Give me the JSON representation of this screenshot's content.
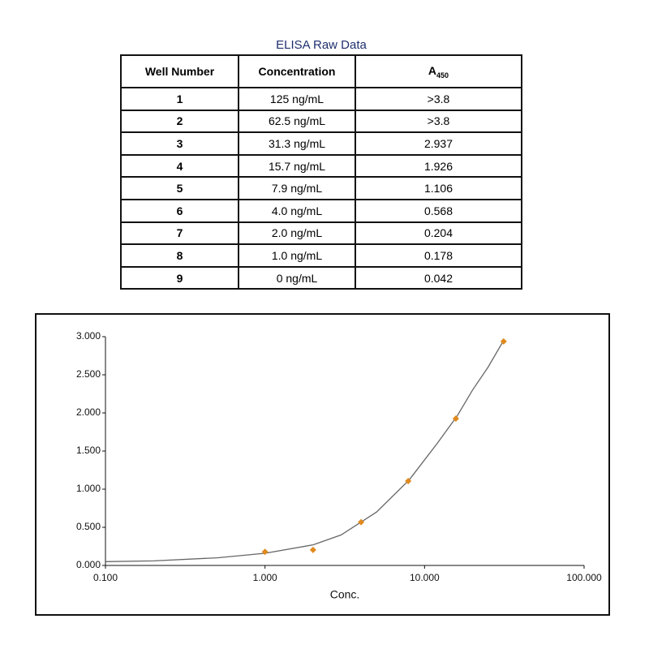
{
  "table": {
    "title": "ELISA Raw Data",
    "header": [
      "Well Number",
      "Concentration",
      {
        "text": "A",
        "subscript": "450"
      }
    ],
    "rows": [
      [
        "1",
        "125 ng/mL",
        ">3.8"
      ],
      [
        "2",
        "62.5 ng/mL",
        ">3.8"
      ],
      [
        "3",
        "31.3 ng/mL",
        "2.937"
      ],
      [
        "4",
        "15.7 ng/mL",
        "1.926"
      ],
      [
        "5",
        "7.9 ng/mL",
        "1.106"
      ],
      [
        "6",
        "4.0 ng/mL",
        "0.568"
      ],
      [
        "7",
        "2.0 ng/mL",
        "0.204"
      ],
      [
        "8",
        "1.0 ng/mL",
        "0.178"
      ],
      [
        "9",
        "0 ng/mL",
        "0.042"
      ]
    ]
  },
  "chart_data": {
    "type": "scatter",
    "x_label": "Conc.",
    "xscale": "log",
    "xlim": [
      0.1,
      100
    ],
    "xticks": [
      {
        "value": 0.1,
        "label": "0.100"
      },
      {
        "value": 1,
        "label": "1.000"
      },
      {
        "value": 10,
        "label": "10.000"
      },
      {
        "value": 100,
        "label": "100.000"
      }
    ],
    "ylim": [
      0,
      3
    ],
    "yticks": [
      {
        "value": 0,
        "label": "0.000"
      },
      {
        "value": 0.5,
        "label": "0.500"
      },
      {
        "value": 1,
        "label": "1.000"
      },
      {
        "value": 1.5,
        "label": "1.500"
      },
      {
        "value": 2,
        "label": "2.000"
      },
      {
        "value": 2.5,
        "label": "2.500"
      },
      {
        "value": 3,
        "label": "3.000"
      }
    ],
    "series": [
      {
        "type": "scatter",
        "color": "#e08a1e",
        "x": [
          1,
          2,
          4,
          7.9,
          15.7,
          31.3
        ],
        "values": [
          0.178,
          0.204,
          0.568,
          1.106,
          1.926,
          2.937
        ]
      },
      {
        "type": "line",
        "color": "#666666",
        "x": [
          0.1,
          0.2,
          0.5,
          1,
          2,
          3,
          5,
          8,
          12,
          16,
          20,
          25,
          31.3
        ],
        "values": [
          0.05,
          0.06,
          0.1,
          0.16,
          0.27,
          0.4,
          0.7,
          1.12,
          1.6,
          1.96,
          2.3,
          2.6,
          2.95
        ]
      }
    ]
  }
}
